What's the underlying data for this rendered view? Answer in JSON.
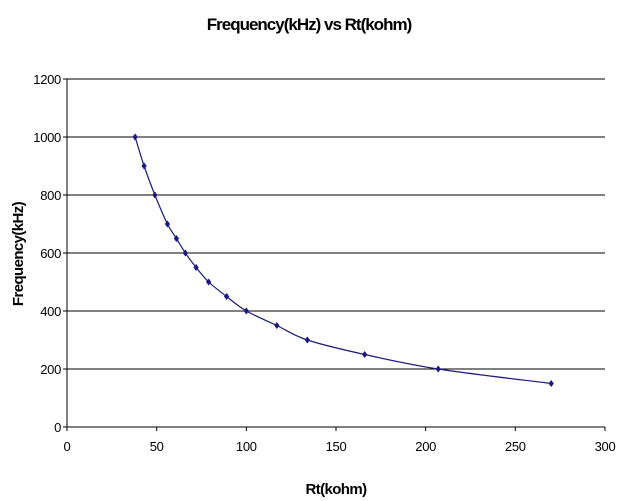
{
  "chart_data": {
    "type": "scatter",
    "title": "Frequency(kHz) vs Rt(kohm)",
    "xlabel": "Rt(kohm)",
    "ylabel": "Frequency(kHz)",
    "xlim": [
      0,
      300
    ],
    "ylim": [
      0,
      1200
    ],
    "xticks": [
      0,
      50,
      100,
      150,
      200,
      250,
      300
    ],
    "yticks": [
      0,
      200,
      400,
      600,
      800,
      1000,
      1200
    ],
    "grid": "horizontal",
    "connect_points": "smooth-line",
    "series": [
      {
        "color": "#1a1a80",
        "marker": "diamond",
        "points": [
          {
            "x": 38,
            "y": 1000
          },
          {
            "x": 43,
            "y": 900
          },
          {
            "x": 49,
            "y": 800
          },
          {
            "x": 56,
            "y": 700
          },
          {
            "x": 61,
            "y": 650
          },
          {
            "x": 66,
            "y": 600
          },
          {
            "x": 72,
            "y": 550
          },
          {
            "x": 79,
            "y": 500
          },
          {
            "x": 89,
            "y": 450
          },
          {
            "x": 100,
            "y": 400
          },
          {
            "x": 117,
            "y": 350
          },
          {
            "x": 134,
            "y": 300
          },
          {
            "x": 166,
            "y": 250
          },
          {
            "x": 207,
            "y": 200
          },
          {
            "x": 270,
            "y": 150
          }
        ]
      }
    ]
  }
}
